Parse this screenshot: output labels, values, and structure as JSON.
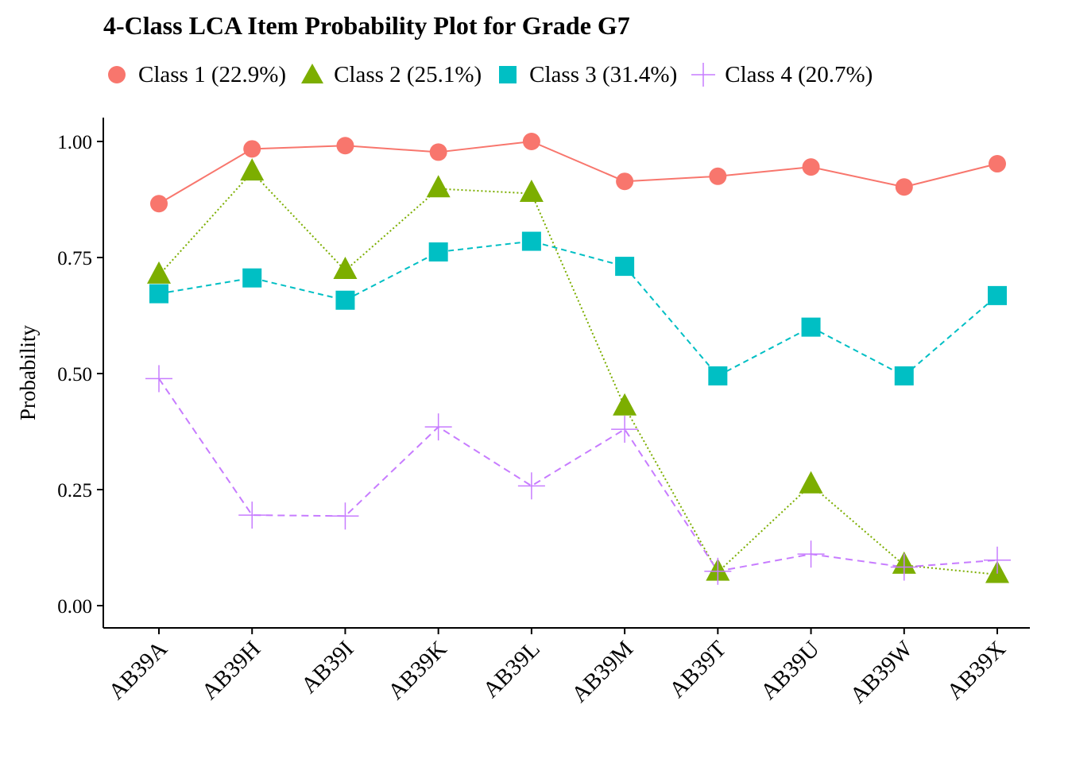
{
  "chart_data": {
    "type": "line",
    "title": "4-Class LCA Item Probability Plot for Grade G7",
    "xlabel": "",
    "ylabel": "Probability",
    "ylim": [
      -0.045,
      1.05
    ],
    "yticks": [
      "0.00",
      "0.25",
      "0.50",
      "0.75",
      "1.00"
    ],
    "categories": [
      "AB39A",
      "AB39H",
      "AB39I",
      "AB39K",
      "AB39L",
      "AB39M",
      "AB39T",
      "AB39U",
      "AB39W",
      "AB39X"
    ],
    "legend_position": "top-left",
    "grid": false,
    "series": [
      {
        "name": "Class 1 (22.9%)",
        "color": "#F8766D",
        "marker": "circle",
        "line": "solid",
        "values": [
          0.866,
          0.984,
          0.991,
          0.977,
          1.0,
          0.914,
          0.925,
          0.945,
          0.902,
          0.952
        ]
      },
      {
        "name": "Class 2 (25.1%)",
        "color": "#7CAE00",
        "marker": "triangle",
        "line": "dotted",
        "values": [
          0.712,
          0.934,
          0.722,
          0.898,
          0.888,
          0.428,
          0.072,
          0.26,
          0.087,
          0.067
        ]
      },
      {
        "name": "Class 3 (31.4%)",
        "color": "#00BFC4",
        "marker": "square",
        "line": "dashed",
        "values": [
          0.672,
          0.706,
          0.658,
          0.762,
          0.785,
          0.731,
          0.495,
          0.6,
          0.495,
          0.668
        ]
      },
      {
        "name": "Class 4 (20.7%)",
        "color": "#C77CFF",
        "marker": "plus",
        "line": "longdash",
        "values": [
          0.489,
          0.195,
          0.193,
          0.385,
          0.258,
          0.38,
          0.074,
          0.111,
          0.083,
          0.098
        ]
      }
    ]
  }
}
